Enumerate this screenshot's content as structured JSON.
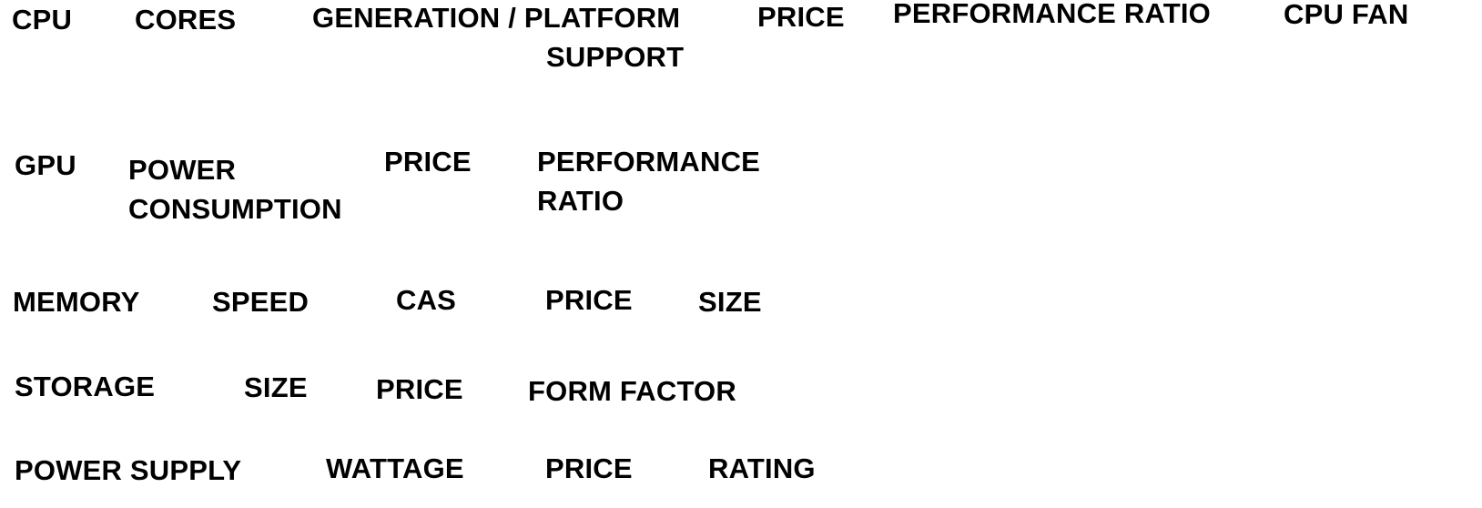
{
  "cpu": {
    "title": "CPU",
    "cores": "CORES",
    "generation_line1": "GENERATION / PLATFORM",
    "generation_line2": "SUPPORT",
    "price": "PRICE",
    "performance_ratio": "PERFORMANCE RATIO",
    "cpu_fan": "CPU FAN"
  },
  "gpu": {
    "title": "GPU",
    "power_line1": "POWER",
    "power_line2": "CONSUMPTION",
    "price": "PRICE",
    "performance_line1": "PERFORMANCE",
    "performance_line2": "RATIO"
  },
  "memory": {
    "title": "MEMORY",
    "speed": "SPEED",
    "cas": "CAS",
    "price": "PRICE",
    "size": "SIZE"
  },
  "storage": {
    "title": "STORAGE",
    "size": "SIZE",
    "price": "PRICE",
    "form_factor": "FORM FACTOR"
  },
  "power_supply": {
    "title": "POWER SUPPLY",
    "wattage": "WATTAGE",
    "price": "PRICE",
    "rating": "RATING"
  }
}
